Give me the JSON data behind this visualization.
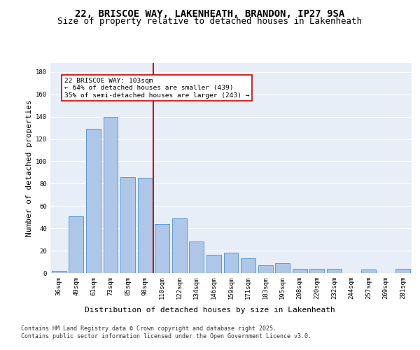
{
  "title_line1": "22, BRISCOE WAY, LAKENHEATH, BRANDON, IP27 9SA",
  "title_line2": "Size of property relative to detached houses in Lakenheath",
  "xlabel": "Distribution of detached houses by size in Lakenheath",
  "ylabel": "Number of detached properties",
  "categories": [
    "36sqm",
    "49sqm",
    "61sqm",
    "73sqm",
    "85sqm",
    "98sqm",
    "110sqm",
    "122sqm",
    "134sqm",
    "146sqm",
    "159sqm",
    "171sqm",
    "183sqm",
    "195sqm",
    "208sqm",
    "220sqm",
    "232sqm",
    "244sqm",
    "257sqm",
    "269sqm",
    "281sqm"
  ],
  "values": [
    2,
    51,
    129,
    140,
    86,
    85,
    44,
    49,
    28,
    16,
    18,
    13,
    7,
    9,
    4,
    4,
    4,
    0,
    3,
    0,
    4
  ],
  "bar_color": "#aec6e8",
  "bar_edge_color": "#5b9bd5",
  "vline_x": 5.5,
  "vline_color": "#cc0000",
  "annotation_text": "22 BRISCOE WAY: 103sqm\n← 64% of detached houses are smaller (439)\n35% of semi-detached houses are larger (243) →",
  "annotation_box_color": "#ffffff",
  "annotation_box_edge": "#cc0000",
  "ylim": [
    0,
    188
  ],
  "yticks": [
    0,
    20,
    40,
    60,
    80,
    100,
    120,
    140,
    160,
    180
  ],
  "background_color": "#e8eef7",
  "grid_color": "#ffffff",
  "footer_line1": "Contains HM Land Registry data © Crown copyright and database right 2025.",
  "footer_line2": "Contains public sector information licensed under the Open Government Licence v3.0.",
  "title_fontsize": 10,
  "subtitle_fontsize": 9,
  "axis_label_fontsize": 8,
  "tick_fontsize": 6.5,
  "footer_fontsize": 6,
  "annotation_fontsize": 6.8
}
